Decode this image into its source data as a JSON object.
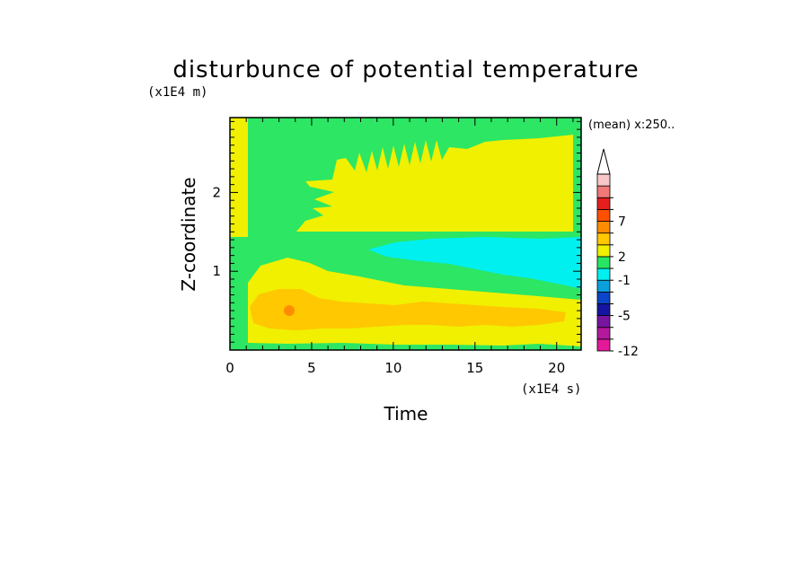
{
  "chart_data": {
    "type": "heatmap",
    "title": "disturbunce of potential temperature",
    "xlabel": "Time",
    "ylabel": "Z-coordinate",
    "x_unit": "(x1E4 s)",
    "y_unit": "(x1E4 m)",
    "annotation": "(mean) x:250..",
    "xlim": [
      0,
      21.5
    ],
    "ylim": [
      0,
      2.95
    ],
    "x_ticks": [
      {
        "value": 0,
        "label": "0"
      },
      {
        "value": 5,
        "label": "5"
      },
      {
        "value": 10,
        "label": "10"
      },
      {
        "value": 15,
        "label": "15"
      },
      {
        "value": 20,
        "label": "20"
      }
    ],
    "y_ticks": [
      {
        "value": 1,
        "label": "1"
      },
      {
        "value": 2,
        "label": "2"
      }
    ],
    "colorbar": {
      "levels": [
        "-12",
        "",
        "",
        "-5",
        "",
        "",
        "-1",
        "",
        "2",
        "",
        "",
        "7",
        "",
        ""
      ],
      "colors": [
        "#e6189a",
        "#b4189c",
        "#7814a0",
        "#1414a0",
        "#0a46c8",
        "#0aa0dc",
        "#00f0f0",
        "#28e664",
        "#f0f000",
        "#ffc800",
        "#ff8c00",
        "#ff5000",
        "#e61e1e",
        "#f07878",
        "#f8c8c8"
      ],
      "extend_top": true
    },
    "colors": {
      "green": "#2ce664",
      "yellow": "#f0f000",
      "cyan": "#00f0f0",
      "orange": "#ffc800",
      "dark_orange": "#ff8c00"
    }
  }
}
